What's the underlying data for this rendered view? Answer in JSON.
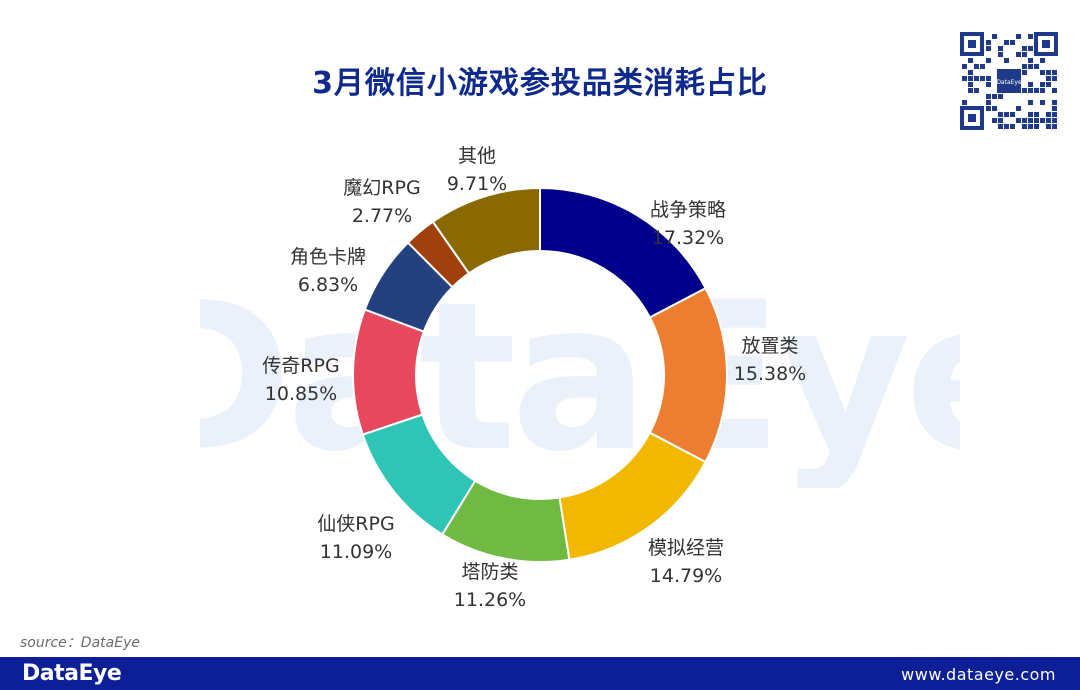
{
  "title": "3月微信小游戏参投品类消耗占比",
  "watermark_text": "DataEye",
  "qr_center_text": "DataEye",
  "source": "source：DataEye",
  "footer": {
    "brand": "DataEye",
    "url": "www.dataeye.com"
  },
  "chart_data": {
    "type": "pie",
    "title": "3月微信小游戏参投品类消耗占比",
    "style": "donut",
    "unit": "%",
    "slices": [
      {
        "name": "战争策略",
        "value": 17.32,
        "label": "17.32%",
        "color": "#00008b"
      },
      {
        "name": "放置类",
        "value": 15.38,
        "label": "15.38%",
        "color": "#ed7d31"
      },
      {
        "name": "模拟经营",
        "value": 14.79,
        "label": "14.79%",
        "color": "#f2b800"
      },
      {
        "name": "塔防类",
        "value": 11.26,
        "label": "11.26%",
        "color": "#70ba44"
      },
      {
        "name": "仙侠RPG",
        "value": 11.09,
        "label": "11.09%",
        "color": "#2ec4b6"
      },
      {
        "name": "传奇RPG",
        "value": 10.85,
        "label": "10.85%",
        "color": "#e8485e"
      },
      {
        "name": "角色卡牌",
        "value": 6.83,
        "label": "6.83%",
        "color": "#23417f"
      },
      {
        "name": "魔幻RPG",
        "value": 2.77,
        "label": "2.77%",
        "color": "#a0410d"
      },
      {
        "name": "其他",
        "value": 9.71,
        "label": "9.71%",
        "color": "#8a6a00"
      }
    ]
  }
}
